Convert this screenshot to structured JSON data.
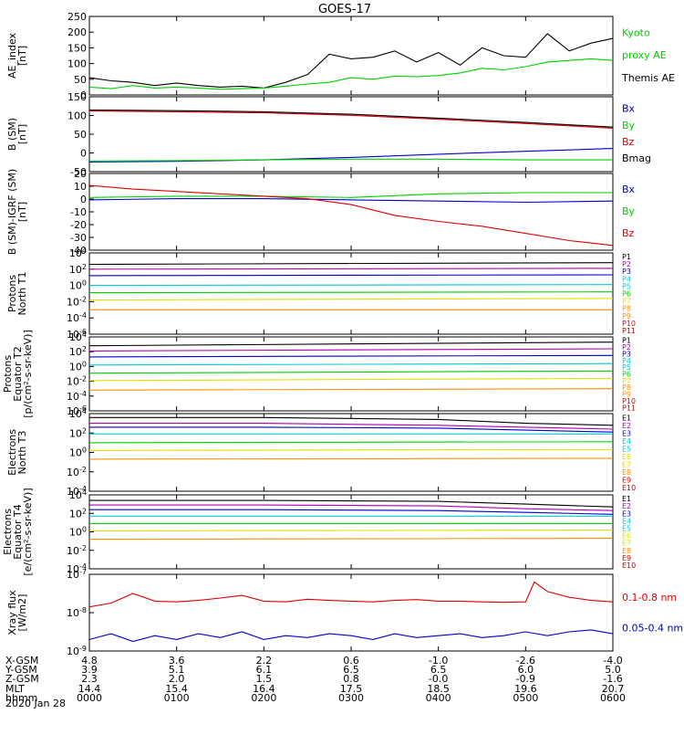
{
  "title": "GOES-17",
  "colors": {
    "black": "#000000",
    "red": "#e00000",
    "green": "#00d000",
    "blue": "#0000cc",
    "cyan": "#00c8d8",
    "yellow": "#e0e000",
    "orange": "#ff9000",
    "magenta": "#b000b0",
    "darkred": "#c00000"
  },
  "chart_data": [
    {
      "type": "line",
      "id": "ae",
      "ylabel": [
        "AE_index",
        "[nT]"
      ],
      "ylim": [
        0,
        250
      ],
      "yticks": [
        "250",
        "200",
        "150",
        "100",
        "50",
        "0"
      ],
      "legend": [
        {
          "text": "Kyoto",
          "color": "#00d000"
        },
        {
          "text": "proxy AE",
          "color": "#00d000"
        },
        {
          "text": "Themis AE",
          "color": "#000000"
        }
      ],
      "series": [
        {
          "name": "Themis AE",
          "color": "#000000",
          "x": [
            0,
            0.25,
            0.5,
            0.75,
            1,
            1.25,
            1.5,
            1.75,
            2,
            2.25,
            2.5,
            2.75,
            3,
            3.25,
            3.5,
            3.75,
            4,
            4.25,
            4.5,
            4.75,
            5,
            5.25,
            5.5,
            5.75,
            6
          ],
          "values": [
            55,
            45,
            40,
            30,
            38,
            30,
            25,
            28,
            22,
            40,
            65,
            130,
            115,
            120,
            140,
            105,
            135,
            95,
            150,
            125,
            120,
            195,
            140,
            165,
            180
          ]
        },
        {
          "name": "Kyoto proxy AE",
          "color": "#00d000",
          "x": [
            0,
            0.25,
            0.5,
            0.75,
            1,
            1.25,
            1.5,
            1.75,
            2,
            2.25,
            2.5,
            2.75,
            3,
            3.25,
            3.5,
            3.75,
            4,
            4.25,
            4.5,
            4.75,
            5,
            5.25,
            5.5,
            5.75,
            6
          ],
          "values": [
            25,
            20,
            30,
            22,
            25,
            22,
            18,
            20,
            22,
            28,
            35,
            40,
            55,
            50,
            60,
            58,
            62,
            70,
            85,
            80,
            90,
            105,
            110,
            115,
            110
          ]
        }
      ]
    },
    {
      "type": "line",
      "id": "bsm",
      "ylabel": [
        "B (SM)",
        "[nT]"
      ],
      "ylim": [
        -55,
        155
      ],
      "yticks": [
        "150",
        "100",
        "50",
        "0",
        "-50"
      ],
      "legend": [
        {
          "text": "Bx",
          "color": "#0000cc"
        },
        {
          "text": "By",
          "color": "#00d000"
        },
        {
          "text": "Bz",
          "color": "#e00000"
        },
        {
          "text": "Bmag",
          "color": "#000000"
        }
      ],
      "series": [
        {
          "name": "Bx",
          "color": "#0000cc",
          "x": [
            0,
            1,
            2,
            3,
            4,
            5,
            6
          ],
          "values": [
            -28,
            -26,
            -22,
            -15,
            -6,
            2,
            10
          ]
        },
        {
          "name": "By",
          "color": "#00d000",
          "x": [
            0,
            1,
            2,
            3,
            4,
            5,
            6
          ],
          "values": [
            -25,
            -24,
            -22,
            -20,
            -20,
            -22,
            -22
          ]
        },
        {
          "name": "Bz",
          "color": "#e00000",
          "x": [
            0,
            1,
            2,
            3,
            4,
            5,
            6
          ],
          "values": [
            115,
            113,
            110,
            103,
            92,
            80,
            67
          ]
        },
        {
          "name": "Bmag",
          "color": "#000000",
          "x": [
            0,
            1,
            2,
            3,
            4,
            5,
            6
          ],
          "values": [
            118,
            116,
            113,
            106,
            95,
            83,
            70
          ]
        }
      ]
    },
    {
      "type": "line",
      "id": "bigrf",
      "ylabel": [
        "B (SM)-IGRF (SM)",
        "[nT]"
      ],
      "ylim": [
        -42,
        22
      ],
      "yticks": [
        "20",
        "10",
        "0",
        "-10",
        "-20",
        "-30",
        "-40"
      ],
      "legend": [
        {
          "text": "Bx",
          "color": "#0000cc"
        },
        {
          "text": "By",
          "color": "#00d000"
        },
        {
          "text": "Bz",
          "color": "#e00000"
        }
      ],
      "series": [
        {
          "name": "Bx",
          "color": "#0000cc",
          "x": [
            0,
            1,
            2,
            3,
            4,
            5,
            6
          ],
          "values": [
            0,
            1,
            1,
            0,
            -1,
            -2,
            -1
          ]
        },
        {
          "name": "By",
          "color": "#00d000",
          "x": [
            0,
            1,
            2,
            3,
            4,
            5,
            6
          ],
          "values": [
            2,
            3,
            3,
            2,
            5,
            6,
            6
          ]
        },
        {
          "name": "Bz",
          "color": "#e00000",
          "x": [
            0,
            0.5,
            1,
            1.5,
            2,
            2.5,
            3,
            3.5,
            4,
            4.5,
            5,
            5.5,
            6
          ],
          "values": [
            12,
            9,
            7,
            5,
            3,
            1,
            -4,
            -13,
            -18,
            -22,
            -28,
            -34,
            -38
          ]
        }
      ]
    },
    {
      "type": "line",
      "id": "pn",
      "log": true,
      "ylabel": [
        "Protons",
        "North T1"
      ],
      "ylim": [
        -6,
        4
      ],
      "yticks": [
        {
          "b": "10",
          "e": "4"
        },
        {
          "b": "10",
          "e": "2"
        },
        {
          "b": "10",
          "e": "0"
        },
        {
          "b": "10",
          "e": "-2"
        },
        {
          "b": "10",
          "e": "-4"
        },
        {
          "b": "10",
          "e": "-6"
        }
      ],
      "legend": [
        "P1",
        "P2",
        "P3",
        "P4",
        "P5",
        "P6",
        "P7",
        "P8",
        "P9",
        "P10",
        "P11"
      ],
      "series": [
        {
          "name": "P1",
          "color": "#000000",
          "x": [
            0,
            6
          ],
          "values": [
            2.6,
            2.8
          ]
        },
        {
          "name": "P2",
          "color": "#b000b0",
          "x": [
            0,
            6
          ],
          "values": [
            2.0,
            2.1
          ]
        },
        {
          "name": "P3",
          "color": "#0000cc",
          "x": [
            0,
            6
          ],
          "values": [
            1.2,
            1.3
          ]
        },
        {
          "name": "P4",
          "color": "#00c8d8",
          "x": [
            0,
            6
          ],
          "values": [
            0.0,
            0.1
          ]
        },
        {
          "name": "P5",
          "color": "#00d000",
          "x": [
            0,
            6
          ],
          "values": [
            -0.9,
            -0.8
          ]
        },
        {
          "name": "P6",
          "color": "#e0e000",
          "x": [
            0,
            6
          ],
          "values": [
            -1.8,
            -1.6
          ]
        },
        {
          "name": "P7",
          "color": "#ff9000",
          "x": [
            0,
            6
          ],
          "values": [
            -3.0,
            -3.0
          ]
        }
      ]
    },
    {
      "type": "line",
      "id": "pe",
      "log": true,
      "ylabel": [
        "Protons",
        "Equator T2",
        "[p/(cm²-s-sr-keV)]"
      ],
      "ylim": [
        -6,
        4
      ],
      "yticks": [
        {
          "b": "10",
          "e": "4"
        },
        {
          "b": "10",
          "e": "2"
        },
        {
          "b": "10",
          "e": "0"
        },
        {
          "b": "10",
          "e": "-2"
        },
        {
          "b": "10",
          "e": "-4"
        },
        {
          "b": "10",
          "e": "-6"
        }
      ],
      "legend": [
        "P1",
        "P2",
        "P3",
        "P4",
        "P5",
        "P6",
        "P7",
        "P8",
        "P9",
        "P10",
        "P11"
      ],
      "series": [
        {
          "name": "P1",
          "color": "#000000",
          "x": [
            0,
            6
          ],
          "values": [
            2.8,
            3.3
          ]
        },
        {
          "name": "P2",
          "color": "#b000b0",
          "x": [
            0,
            6
          ],
          "values": [
            2.1,
            2.4
          ]
        },
        {
          "name": "P3",
          "color": "#0000cc",
          "x": [
            0,
            6
          ],
          "values": [
            1.3,
            1.5
          ]
        },
        {
          "name": "P4",
          "color": "#00c8d8",
          "x": [
            0,
            6
          ],
          "values": [
            0.2,
            0.4
          ]
        },
        {
          "name": "P5",
          "color": "#00d000",
          "x": [
            0,
            6
          ],
          "values": [
            -0.9,
            -0.6
          ]
        },
        {
          "name": "P6",
          "color": "#e0e000",
          "x": [
            0,
            6
          ],
          "values": [
            -1.9,
            -1.6
          ]
        },
        {
          "name": "P7",
          "color": "#ff9000",
          "x": [
            0,
            6
          ],
          "values": [
            -3.2,
            -3.0
          ]
        }
      ]
    },
    {
      "type": "line",
      "id": "en",
      "log": true,
      "ylabel": [
        "Electrons",
        "North T3"
      ],
      "ylim": [
        -4,
        4
      ],
      "yticks": [
        {
          "b": "10",
          "e": "4"
        },
        {
          "b": "10",
          "e": "2"
        },
        {
          "b": "10",
          "e": "0"
        },
        {
          "b": "10",
          "e": "-2"
        },
        {
          "b": "10",
          "e": "-4"
        }
      ],
      "legend": [
        "E1",
        "E2",
        "E3",
        "E4",
        "E5",
        "E6",
        "E7",
        "E8",
        "E9",
        "E10"
      ],
      "series": [
        {
          "name": "E1",
          "color": "#000000",
          "x": [
            0,
            2,
            4,
            5,
            6
          ],
          "values": [
            3.6,
            3.6,
            3.4,
            3.0,
            2.8
          ]
        },
        {
          "name": "E2",
          "color": "#b000b0",
          "x": [
            0,
            2,
            4,
            5,
            6
          ],
          "values": [
            3.0,
            3.0,
            2.8,
            2.6,
            2.4
          ]
        },
        {
          "name": "E3",
          "color": "#0000cc",
          "x": [
            0,
            2,
            4,
            5,
            6
          ],
          "values": [
            2.6,
            2.6,
            2.5,
            2.3,
            2.1
          ]
        },
        {
          "name": "E4",
          "color": "#00c8d8",
          "x": [
            0,
            6
          ],
          "values": [
            1.9,
            1.9
          ]
        },
        {
          "name": "E5",
          "color": "#00d000",
          "x": [
            0,
            6
          ],
          "values": [
            1.0,
            1.1
          ]
        },
        {
          "name": "E6",
          "color": "#e0e000",
          "x": [
            0,
            6
          ],
          "values": [
            0.2,
            0.3
          ]
        },
        {
          "name": "E7",
          "color": "#ff9000",
          "x": [
            0,
            6
          ],
          "values": [
            -0.7,
            -0.6
          ]
        }
      ]
    },
    {
      "type": "line",
      "id": "ee",
      "log": true,
      "ylabel": [
        "Electrons",
        "Equator T4",
        "[e/(cm²-s-sr-keV)]"
      ],
      "ylim": [
        -4,
        4
      ],
      "yticks": [
        {
          "b": "10",
          "e": "4"
        },
        {
          "b": "10",
          "e": "2"
        },
        {
          "b": "10",
          "e": "0"
        },
        {
          "b": "10",
          "e": "-2"
        },
        {
          "b": "10",
          "e": "-4"
        }
      ],
      "legend": [
        "E1",
        "E2",
        "E3",
        "E4",
        "E5",
        "E6",
        "E7",
        "E8",
        "E9",
        "E10"
      ],
      "series": [
        {
          "name": "E1",
          "color": "#000000",
          "x": [
            0,
            2,
            4,
            5,
            6
          ],
          "values": [
            3.4,
            3.4,
            3.3,
            3.0,
            2.7
          ]
        },
        {
          "name": "E2",
          "color": "#b000b0",
          "x": [
            0,
            2,
            4,
            5,
            6
          ],
          "values": [
            2.9,
            2.9,
            2.8,
            2.5,
            2.3
          ]
        },
        {
          "name": "E3",
          "color": "#0000cc",
          "x": [
            0,
            2,
            4,
            5,
            6
          ],
          "values": [
            2.4,
            2.4,
            2.3,
            2.1,
            1.9
          ]
        },
        {
          "name": "E4",
          "color": "#00c8d8",
          "x": [
            0,
            6
          ],
          "values": [
            1.7,
            1.7
          ]
        },
        {
          "name": "E5",
          "color": "#00d000",
          "x": [
            0,
            6
          ],
          "values": [
            0.9,
            0.9
          ]
        },
        {
          "name": "E6",
          "color": "#e0e000",
          "x": [
            0,
            6
          ],
          "values": [
            0.1,
            0.2
          ]
        },
        {
          "name": "E7",
          "color": "#ff9000",
          "x": [
            0,
            6
          ],
          "values": [
            -0.8,
            -0.7
          ]
        }
      ]
    },
    {
      "type": "line",
      "id": "xray",
      "log": true,
      "ylabel": [
        "Xray flux",
        "[W/m2]"
      ],
      "ylim": [
        -9,
        -7
      ],
      "yticks": [
        {
          "b": "10",
          "e": "-7"
        },
        {
          "b": "10",
          "e": "-8"
        },
        {
          "b": "10",
          "e": "-9"
        }
      ],
      "legend": [
        {
          "text": "0.1-0.8 nm",
          "color": "#e00000"
        },
        {
          "text": "0.05-0.4 nm",
          "color": "#0000cc"
        }
      ],
      "series": [
        {
          "name": "0.1-0.8 nm",
          "color": "#e00000",
          "x": [
            0,
            0.25,
            0.5,
            0.75,
            1,
            1.25,
            1.5,
            1.75,
            2,
            2.25,
            2.5,
            2.75,
            3,
            3.25,
            3.5,
            3.75,
            4,
            4.25,
            4.5,
            4.75,
            5,
            5.1,
            5.25,
            5.5,
            5.75,
            6
          ],
          "values": [
            -7.85,
            -7.75,
            -7.5,
            -7.7,
            -7.72,
            -7.68,
            -7.62,
            -7.55,
            -7.7,
            -7.72,
            -7.65,
            -7.68,
            -7.7,
            -7.72,
            -7.68,
            -7.66,
            -7.7,
            -7.7,
            -7.72,
            -7.73,
            -7.72,
            -7.2,
            -7.45,
            -7.6,
            -7.68,
            -7.72
          ]
        },
        {
          "name": "0.05-0.4 nm",
          "color": "#0000cc",
          "x": [
            0,
            0.25,
            0.5,
            0.75,
            1,
            1.25,
            1.5,
            1.75,
            2,
            2.25,
            2.5,
            2.75,
            3,
            3.25,
            3.5,
            3.75,
            4,
            4.25,
            4.5,
            4.75,
            5,
            5.25,
            5.5,
            5.75,
            6
          ],
          "values": [
            -8.7,
            -8.55,
            -8.75,
            -8.6,
            -8.7,
            -8.55,
            -8.65,
            -8.5,
            -8.7,
            -8.6,
            -8.65,
            -8.55,
            -8.6,
            -8.7,
            -8.55,
            -8.65,
            -8.6,
            -8.55,
            -8.65,
            -8.6,
            -8.5,
            -8.6,
            -8.5,
            -8.45,
            -8.55
          ]
        }
      ]
    }
  ],
  "x_axis": {
    "row_labels": [
      "X-GSM",
      "Y-GSM",
      "Z-GSM",
      "MLT",
      "hhmm"
    ],
    "columns": [
      [
        "4.8",
        "3.9",
        "2.3",
        "14.4",
        "0000"
      ],
      [
        "3.6",
        "5.1",
        "2.0",
        "15.4",
        "0100"
      ],
      [
        "2.2",
        "6.1",
        "1.5",
        "16.4",
        "0200"
      ],
      [
        "0.6",
        "6.5",
        "0.8",
        "17.5",
        "0300"
      ],
      [
        "-1.0",
        "6.5",
        "-0.0",
        "18.5",
        "0400"
      ],
      [
        "-2.6",
        "6.0",
        "-0.9",
        "19.6",
        "0500"
      ],
      [
        "-4.0",
        "5.0",
        "-1.6",
        "20.7",
        "0600"
      ]
    ],
    "date": "2020 Jan 28"
  }
}
